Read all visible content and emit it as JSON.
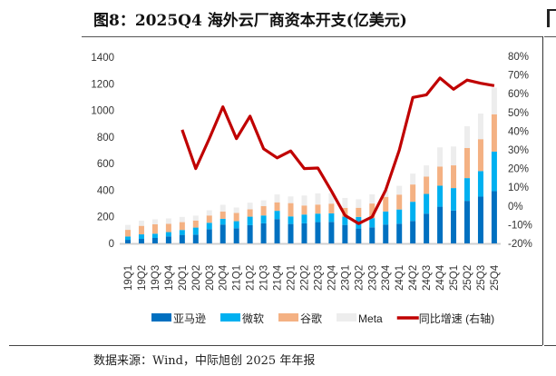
{
  "title": "图8：2025Q4 海外云厂商资本开支(亿美元)",
  "source": "数据来源：Wind，中际旭创 2025 年年报",
  "chart_data": {
    "type": "bar",
    "stacked": true,
    "title": "图8：2025Q4 海外云厂商资本开支(亿美元)",
    "categories": [
      "19Q1",
      "19Q2",
      "19Q3",
      "19Q4",
      "20Q1",
      "20Q2",
      "20Q3",
      "20Q4",
      "21Q1",
      "21Q2",
      "21Q3",
      "21Q4",
      "22Q1",
      "22Q2",
      "22Q3",
      "22Q4",
      "23Q1",
      "23Q2",
      "23Q3",
      "23Q4",
      "24Q1",
      "24Q2",
      "24Q3",
      "24Q4",
      "25Q1",
      "25Q2",
      "25Q3",
      "25Q4"
    ],
    "left_axis": {
      "ylim": [
        0,
        1400
      ],
      "ticks": [
        0,
        200,
        400,
        600,
        800,
        1000,
        1200,
        1400
      ]
    },
    "right_axis": {
      "ylim": [
        -20,
        80
      ],
      "ticks": [
        "-20%",
        "-10%",
        "0%",
        "10%",
        "20%",
        "30%",
        "40%",
        "50%",
        "60%",
        "70%",
        "80%"
      ]
    },
    "grid": false,
    "legend_placement": "bottom",
    "series": [
      {
        "name": "亚马逊",
        "color": "#0070C0",
        "axis": "left",
        "type": "bar",
        "values": [
          27,
          34,
          41,
          53,
          64,
          66,
          107,
          142,
          114,
          137,
          151,
          183,
          146,
          151,
          160,
          162,
          139,
          112,
          121,
          142,
          148,
          169,
          224,
          276,
          247,
          320,
          352,
          393
        ]
      },
      {
        "name": "微软",
        "color": "#00B0F0",
        "axis": "left",
        "type": "bar",
        "values": [
          25,
          34,
          32,
          32,
          37,
          53,
          48,
          43,
          53,
          64,
          59,
          62,
          57,
          66,
          64,
          64,
          62,
          87,
          69,
          98,
          107,
          144,
          148,
          158,
          169,
          171,
          192,
          297
        ]
      },
      {
        "name": "谷歌",
        "color": "#F4B183",
        "axis": "left",
        "type": "bar",
        "values": [
          50,
          64,
          71,
          62,
          59,
          53,
          55,
          55,
          62,
          55,
          71,
          64,
          100,
          68,
          68,
          73,
          66,
          69,
          110,
          110,
          112,
          130,
          130,
          144,
          171,
          226,
          240,
          281
        ]
      },
      {
        "name": "Meta",
        "color": "#EDEDED",
        "axis": "left",
        "type": "bar",
        "values": [
          37,
          39,
          37,
          41,
          39,
          37,
          39,
          50,
          41,
          50,
          43,
          59,
          50,
          75,
          84,
          78,
          75,
          64,
          69,
          50,
          66,
          82,
          85,
          144,
          142,
          164,
          192,
          200
        ]
      },
      {
        "name": "同比增速 (右轴)",
        "color": "#C00000",
        "axis": "right",
        "type": "line",
        "unit": "%",
        "values": [
          null,
          null,
          null,
          null,
          40.7,
          20,
          36,
          53,
          36,
          48,
          30.6,
          25.7,
          29.4,
          20,
          20.3,
          8,
          -5,
          -9.4,
          -5.8,
          8.5,
          29.8,
          58,
          59.4,
          68.4,
          62.4,
          67.3,
          65.6,
          64.3
        ]
      }
    ]
  }
}
